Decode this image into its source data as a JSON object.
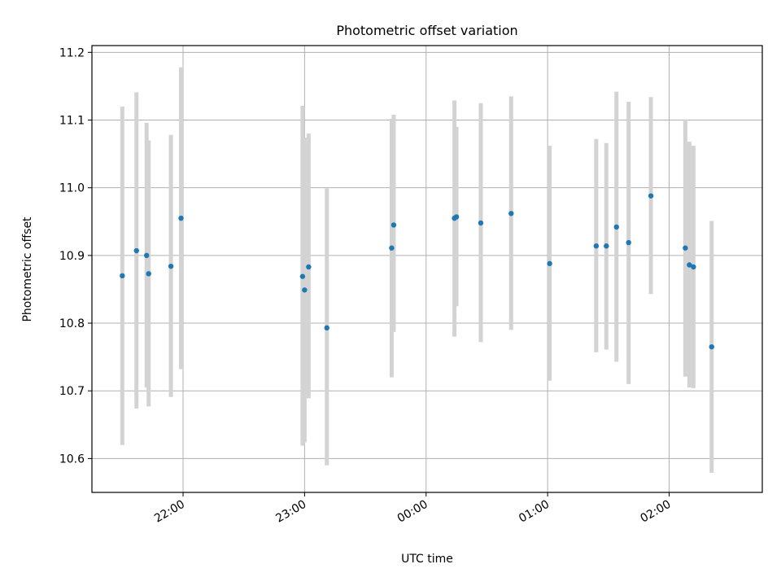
{
  "chart_data": {
    "type": "scatter",
    "title": "Photometric offset variation",
    "xlabel": "UTC time",
    "ylabel": "Photometric offset",
    "xlim": [
      "21:15",
      "02:46"
    ],
    "ylim": [
      10.55,
      11.21
    ],
    "xticks": [
      "22:00",
      "23:00",
      "00:00",
      "01:00",
      "02:00"
    ],
    "yticks": [
      10.6,
      10.7,
      10.8,
      10.9,
      11.0,
      11.1,
      11.2
    ],
    "grid": true,
    "colors": {
      "point": "#1f77b4",
      "errorbar": "#d3d3d3",
      "grid": "#b0b0b0"
    },
    "points": [
      {
        "x": "21:30",
        "y": 10.87,
        "lo": 10.62,
        "hi": 11.12
      },
      {
        "x": "21:37",
        "y": 10.907,
        "lo": 10.674,
        "hi": 11.141
      },
      {
        "x": "21:42",
        "y": 10.9,
        "lo": 10.705,
        "hi": 11.096
      },
      {
        "x": "21:43",
        "y": 10.873,
        "lo": 10.677,
        "hi": 11.07
      },
      {
        "x": "21:54",
        "y": 10.884,
        "lo": 10.691,
        "hi": 11.078
      },
      {
        "x": "21:59",
        "y": 10.955,
        "lo": 10.732,
        "hi": 11.178
      },
      {
        "x": "22:59",
        "y": 10.869,
        "lo": 10.619,
        "hi": 11.121
      },
      {
        "x": "23:00",
        "y": 10.849,
        "lo": 10.624,
        "hi": 11.074
      },
      {
        "x": "23:02",
        "y": 10.883,
        "lo": 10.689,
        "hi": 11.08
      },
      {
        "x": "23:11",
        "y": 10.793,
        "lo": 10.59,
        "hi": 10.999
      },
      {
        "x": "23:43",
        "y": 10.911,
        "lo": 10.72,
        "hi": 11.102
      },
      {
        "x": "23:44",
        "y": 10.945,
        "lo": 10.787,
        "hi": 11.108
      },
      {
        "x": "00:14",
        "y": 10.955,
        "lo": 10.78,
        "hi": 11.129
      },
      {
        "x": "00:15",
        "y": 10.957,
        "lo": 10.825,
        "hi": 11.09
      },
      {
        "x": "00:27",
        "y": 10.948,
        "lo": 10.772,
        "hi": 11.125
      },
      {
        "x": "00:42",
        "y": 10.962,
        "lo": 10.79,
        "hi": 11.135
      },
      {
        "x": "01:01",
        "y": 10.888,
        "lo": 10.715,
        "hi": 11.062
      },
      {
        "x": "01:24",
        "y": 10.914,
        "lo": 10.757,
        "hi": 11.072
      },
      {
        "x": "01:29",
        "y": 10.914,
        "lo": 10.761,
        "hi": 11.066
      },
      {
        "x": "01:34",
        "y": 10.942,
        "lo": 10.743,
        "hi": 11.142
      },
      {
        "x": "01:40",
        "y": 10.919,
        "lo": 10.71,
        "hi": 11.127
      },
      {
        "x": "01:51",
        "y": 10.988,
        "lo": 10.843,
        "hi": 11.134
      },
      {
        "x": "02:08",
        "y": 10.911,
        "lo": 10.721,
        "hi": 11.101
      },
      {
        "x": "02:10",
        "y": 10.886,
        "lo": 10.705,
        "hi": 11.068
      },
      {
        "x": "02:12",
        "y": 10.883,
        "lo": 10.704,
        "hi": 11.062
      },
      {
        "x": "02:21",
        "y": 10.765,
        "lo": 10.579,
        "hi": 10.951
      }
    ]
  }
}
